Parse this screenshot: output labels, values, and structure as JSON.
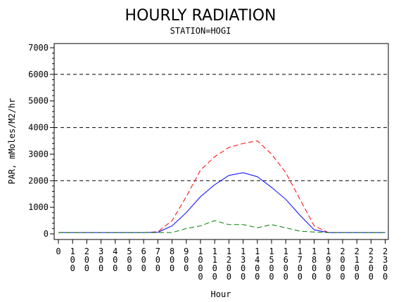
{
  "chart_data": {
    "type": "line",
    "title": "HOURLY RADIATION",
    "subtitle": "STATION=HOGI",
    "xlabel": "Hour",
    "ylabel": "PAR, mMoles/M2/hr",
    "ylim": [
      0,
      7000
    ],
    "y_ticks": [
      0,
      1000,
      2000,
      3000,
      4000,
      5000,
      6000,
      7000
    ],
    "y_tick_labels": [
      "0",
      "1000",
      "2000",
      "3000",
      "4000",
      "5000",
      "6000",
      "7000"
    ],
    "x_tick_labels": [
      "0",
      "100",
      "200",
      "300",
      "400",
      "500",
      "600",
      "700",
      "800",
      "900",
      "1000",
      "1100",
      "1200",
      "1300",
      "1400",
      "1500",
      "1600",
      "1700",
      "1800",
      "1900",
      "2000",
      "2100",
      "2200",
      "2300"
    ],
    "reference_lines": [
      2000,
      4000,
      6000
    ],
    "series": [
      {
        "color": "#ff0000",
        "style": "dashed",
        "values": [
          50,
          50,
          50,
          50,
          50,
          50,
          50,
          80,
          500,
          1400,
          2400,
          2900,
          3250,
          3400,
          3500,
          3000,
          2300,
          1300,
          300,
          50,
          50,
          50,
          50,
          50
        ]
      },
      {
        "color": "#0000ff",
        "style": "solid",
        "values": [
          50,
          50,
          50,
          50,
          50,
          50,
          50,
          60,
          300,
          800,
          1400,
          1850,
          2200,
          2300,
          2150,
          1750,
          1300,
          700,
          150,
          50,
          50,
          50,
          50,
          50
        ]
      },
      {
        "color": "#008000",
        "style": "dashed",
        "values": [
          50,
          50,
          50,
          50,
          50,
          50,
          50,
          50,
          50,
          200,
          300,
          500,
          350,
          350,
          230,
          350,
          230,
          100,
          70,
          50,
          50,
          50,
          50,
          50
        ]
      }
    ]
  }
}
